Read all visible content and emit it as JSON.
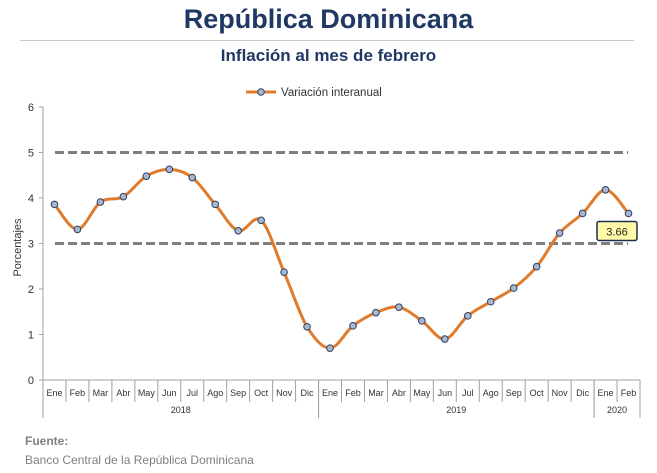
{
  "header": {
    "title": "República Dominicana",
    "subtitle": "Inflación al mes de febrero"
  },
  "source": {
    "label": "Fuente:",
    "text": "Banco Central de la República Dominicana"
  },
  "chart_data": {
    "type": "line",
    "title": "Inflación al mes de febrero",
    "ylabel": "Porcentajes",
    "xlabel": "",
    "ylim": [
      0,
      6
    ],
    "yticks": [
      0,
      1,
      2,
      3,
      4,
      5,
      6
    ],
    "grid": false,
    "legend_position": "top",
    "categories": [
      "Ene",
      "Feb",
      "Mar",
      "Abr",
      "May",
      "Jun",
      "Jul",
      "Ago",
      "Sep",
      "Oct",
      "Nov",
      "Dic",
      "Ene",
      "Feb",
      "Mar",
      "Abr",
      "May",
      "Jun",
      "Jul",
      "Ago",
      "Sep",
      "Oct",
      "Nov",
      "Dic",
      "Ene",
      "Feb"
    ],
    "year_groups": [
      {
        "label": "2018",
        "start": 0,
        "count": 12
      },
      {
        "label": "2019",
        "start": 12,
        "count": 12
      },
      {
        "label": "2020",
        "start": 24,
        "count": 2
      }
    ],
    "series": [
      {
        "name": "Variación interanual",
        "color": "#e07b2c",
        "marker_color": "#a6b7d1",
        "values": [
          3.86,
          3.31,
          3.91,
          4.03,
          4.48,
          4.63,
          4.45,
          3.86,
          3.28,
          3.51,
          2.37,
          1.17,
          0.7,
          1.19,
          1.48,
          1.6,
          1.3,
          0.9,
          1.41,
          1.72,
          2.02,
          2.49,
          3.23,
          3.66,
          4.18,
          3.66
        ]
      }
    ],
    "reference_lines": [
      3,
      5
    ],
    "reference_line_color": "#7f7f7f",
    "annotation": {
      "label": "3.66",
      "index": 25
    }
  }
}
